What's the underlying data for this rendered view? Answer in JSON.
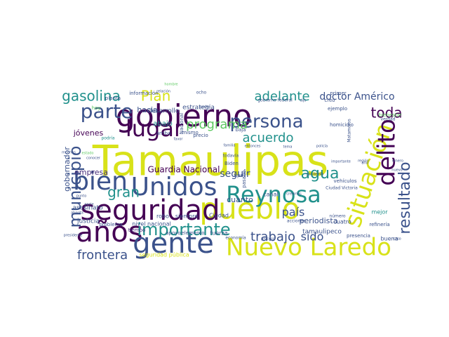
{
  "palette": {
    "yellow": "#d8e219",
    "lime": "#b5de2b",
    "green": "#5ec962",
    "teal": "#21918c",
    "blue": "#2c728e",
    "indigo": "#3b528b",
    "purple": "#472d7b",
    "dark": "#440154",
    "mint": "#35b779"
  },
  "words": [
    "Tamaulipas",
    "gobierno",
    "pueblo",
    "Nuevo Laredo",
    "seguridad",
    "Unidos",
    "Reynosa",
    "situación",
    "delito",
    "años",
    "gente",
    "bien",
    "lugar",
    "parte",
    "persona",
    "municipio",
    "importante",
    "resultado",
    "gasolina",
    "Plan",
    "adelante",
    "agua",
    "trabajo",
    "frontera",
    "programa",
    "acuerdo",
    "toda",
    "gran",
    "doctor Américo",
    "Guardia Nacional",
    "país",
    "sido",
    "seguir",
    "jóvenes",
    "gobernador",
    "empresa",
    "hacia",
    "abajo",
    "desarrollo",
    "estrategia",
    "periodista",
    "tamaulipeco",
    "cuanto",
    "justicia",
    "asesinato",
    "nivel nacional",
    "seguridad pública",
    "robo",
    "siempre",
    "Ciudad",
    "fuerza",
    "cuatro",
    "mejor",
    "refinería",
    "buena",
    "presencia",
    "canal",
    "Ciudad Victoria",
    "vehículos",
    "Biden",
    "homicidio",
    "ejemplo",
    "creo",
    "primer",
    "verdad",
    "Matamoros",
    "información",
    "bienestar",
    "tipo",
    "baja",
    "mismo",
    "Nacional",
    "arriba",
    "planta",
    "podría",
    "precio",
    "hoy",
    "pasado",
    "tiempo",
    "apoyo",
    "elemento",
    "problema",
    "economía",
    "acciones",
    "número",
    "gobierno federal",
    "dijo",
    "pandemia",
    "año",
    "favor",
    "ocho",
    "hombre",
    "familia",
    "todavía",
    "proceso",
    "relación",
    "ahorita",
    "poder",
    "presidente",
    "estado",
    "conocer",
    "entonces",
    "tema",
    "policía",
    "región",
    "creemos",
    "importante",
    "caso",
    "nuevo",
    "punto",
    "parte",
    "muchas",
    "dinero",
    "empleo",
    "obras"
  ]
}
